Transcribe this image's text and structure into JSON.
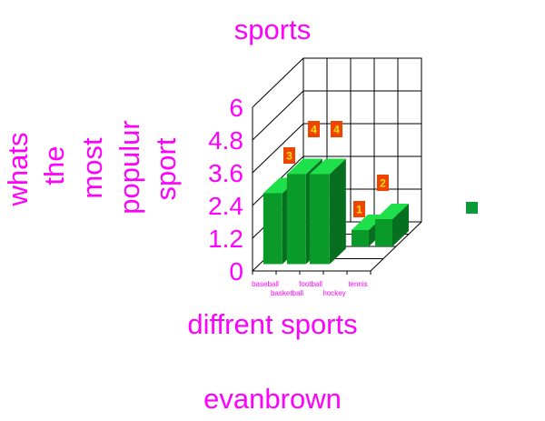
{
  "chart_data": {
    "type": "bar",
    "title": "sports",
    "ylabel": "whats the most populur sport",
    "ylabel_lines": [
      "whats",
      "the",
      "most",
      "populur",
      "sport"
    ],
    "xlabel": "diffrent sports",
    "footer": "evanbrown",
    "categories": [
      "baseball",
      "basketball",
      "football",
      "hockey",
      "tennis"
    ],
    "values": [
      2.6,
      3.3,
      3.3,
      0.6,
      1.0
    ],
    "annotations": [
      {
        "label": "3",
        "category": "basketball"
      },
      {
        "label": "4",
        "category": "football"
      },
      {
        "label": "4",
        "category": "football"
      },
      {
        "label": "1",
        "category": "tennis"
      },
      {
        "label": "2",
        "category": "tennis"
      }
    ],
    "y_ticks": [
      "0",
      "1.2",
      "2.4",
      "3.6",
      "4.8",
      "6"
    ],
    "ylim": [
      0,
      6
    ],
    "grid": true,
    "legend": "right",
    "colors": {
      "text": "#ff00ff",
      "bar_front": "#0a9a2a",
      "bar_top": "#1ee04a",
      "bar_side": "#067020",
      "legend_swatch": "#0a9a3a",
      "annotation_fill": "#ee4400",
      "annotation_text": "#ffe000",
      "grid": "#000000"
    }
  }
}
